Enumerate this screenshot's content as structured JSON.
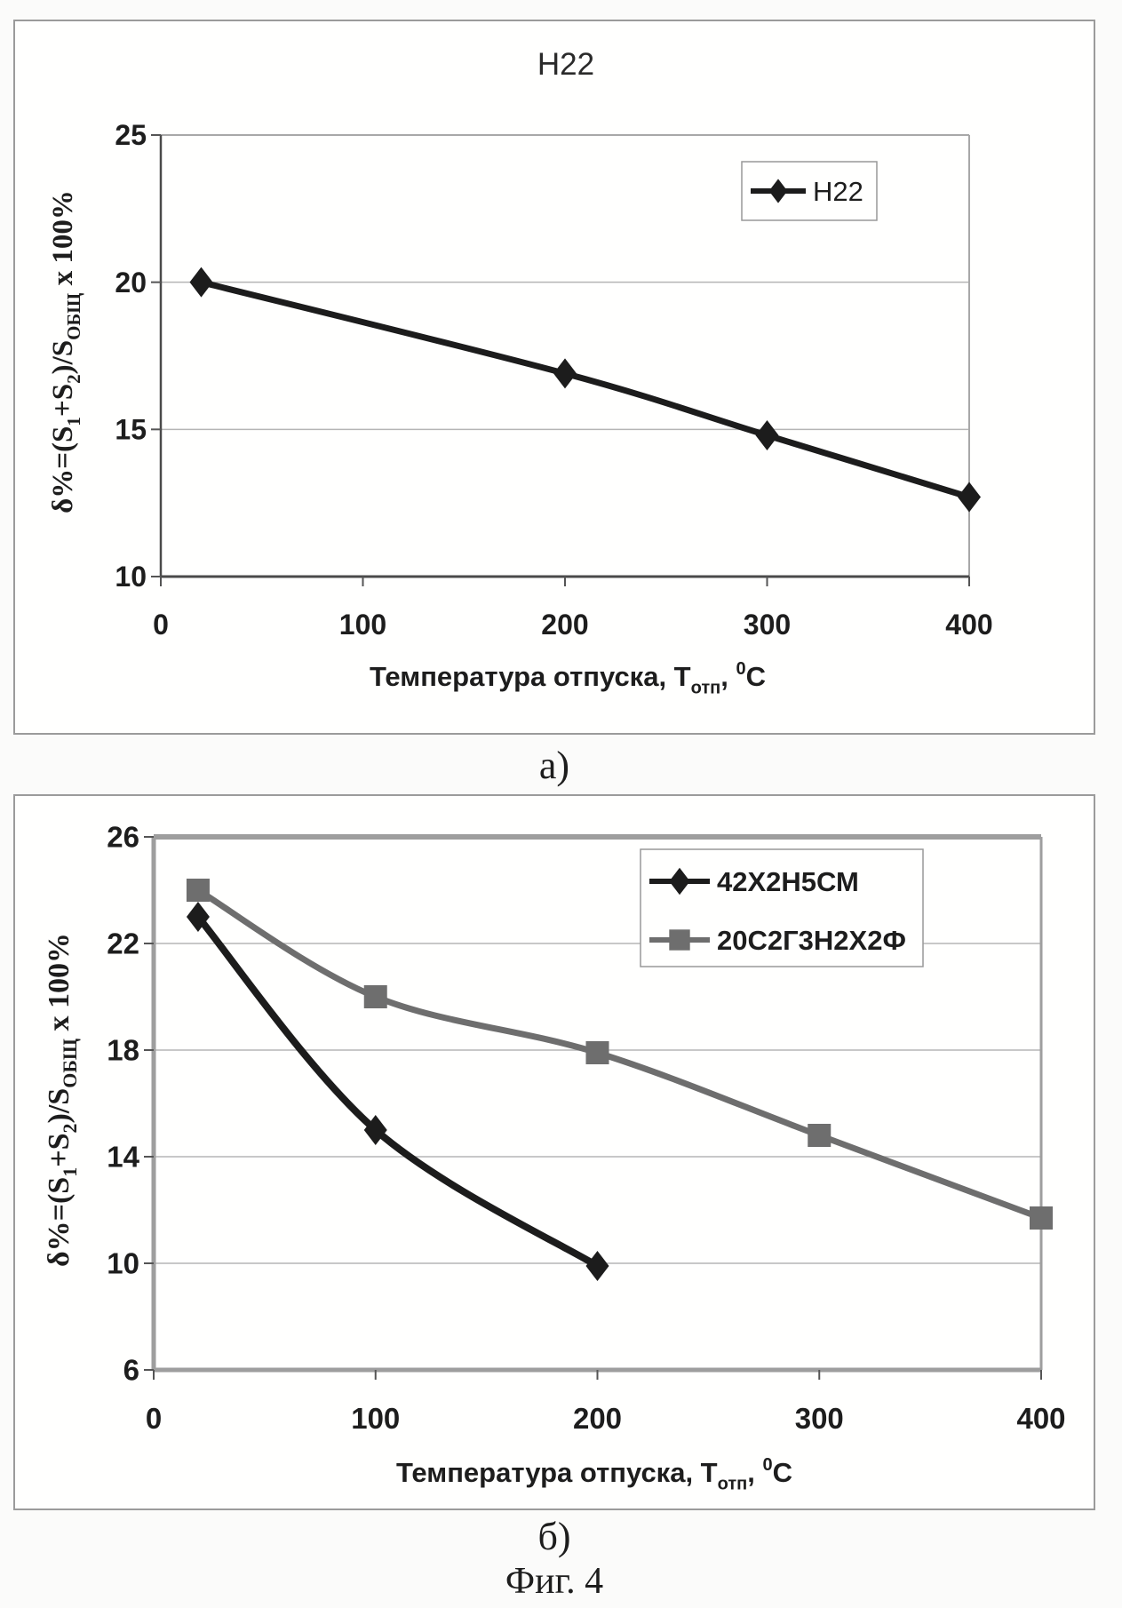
{
  "figure": {
    "caption_a": "а)",
    "caption_b": "б)",
    "figure_label": "Фиг. 4"
  },
  "colors": {
    "text": "#1d1d1d",
    "grid": "#b5b5b5",
    "axis_dark": "#4a4a4a",
    "frame_gray": "#9e9e9e",
    "legend_border": "#999999"
  },
  "chart_data": [
    {
      "type": "line",
      "title": "Н22",
      "xlabel_parts": [
        {
          "t": "Температура отпуска, Т"
        },
        {
          "t": "отп",
          "pos": "sub"
        },
        {
          "t": ", "
        },
        {
          "t": "0",
          "pos": "sup"
        },
        {
          "t": "С"
        }
      ],
      "ylabel_parts": [
        {
          "t": "δ%=(S"
        },
        {
          "t": "1",
          "pos": "sub"
        },
        {
          "t": "+S"
        },
        {
          "t": "2",
          "pos": "sub"
        },
        {
          "t": ")/S"
        },
        {
          "t": "ОБЩ",
          "pos": "sub"
        },
        {
          "t": " х 100%"
        }
      ],
      "xlim": [
        0,
        400
      ],
      "ylim": [
        10,
        25
      ],
      "x_ticks": [
        0,
        100,
        200,
        300,
        400
      ],
      "y_ticks": [
        10,
        15,
        20,
        25
      ],
      "grid": "horizontal",
      "legend_position": "top-right",
      "series": [
        {
          "name": "Н22",
          "marker": "diamond",
          "color": "#1c1c1c",
          "width": 7,
          "x": [
            20,
            200,
            300,
            400
          ],
          "values": [
            20,
            16.9,
            14.8,
            12.7
          ]
        }
      ]
    },
    {
      "type": "line",
      "title": "",
      "xlabel_parts": [
        {
          "t": "Температура отпуска, Т"
        },
        {
          "t": "отп",
          "pos": "sub"
        },
        {
          "t": ", "
        },
        {
          "t": "0",
          "pos": "sup"
        },
        {
          "t": "С"
        }
      ],
      "ylabel_parts": [
        {
          "t": "δ%=(S"
        },
        {
          "t": "1",
          "pos": "sub"
        },
        {
          "t": "+S"
        },
        {
          "t": "2",
          "pos": "sub"
        },
        {
          "t": ")/S"
        },
        {
          "t": "ОБЩ",
          "pos": "sub"
        },
        {
          "t": " х 100%"
        }
      ],
      "xlim": [
        0,
        400
      ],
      "ylim": [
        6,
        26
      ],
      "x_ticks": [
        0,
        100,
        200,
        300,
        400
      ],
      "y_ticks": [
        6,
        10,
        14,
        18,
        22,
        26
      ],
      "grid": "horizontal",
      "legend_position": "top-right",
      "series": [
        {
          "name": "42Х2Н5СМ",
          "marker": "diamond",
          "color": "#1c1c1c",
          "width": 8,
          "x": [
            20,
            100,
            200
          ],
          "values": [
            23,
            15,
            9.9
          ]
        },
        {
          "name": "20С2Г3Н2Х2Ф",
          "marker": "square",
          "color": "#6e6e6e",
          "width": 7,
          "x": [
            20,
            100,
            200,
            300,
            400
          ],
          "values": [
            24,
            20,
            17.9,
            14.8,
            11.7
          ]
        }
      ]
    }
  ]
}
